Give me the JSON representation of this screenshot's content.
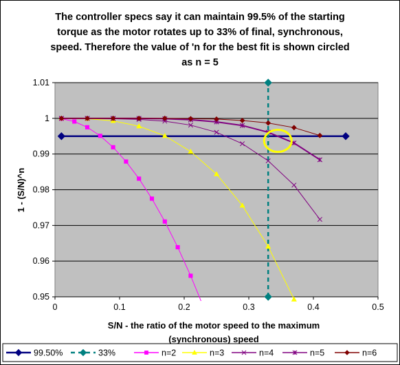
{
  "chart_data": {
    "type": "line",
    "title_lines": [
      "The controller specs say it can maintain 99.5% of the starting",
      "torque as the motor rotates up to 33% of final, synchronous,",
      "speed. Therefore the value of 'n for the best fit is shown circled",
      "as n = 5"
    ],
    "xlabel_lines": [
      "S/N - the ratio of the motor speed to the maximum",
      "(synchronous) speed"
    ],
    "ylabel": "1 - (S/N)^n",
    "xlim": [
      0,
      0.5
    ],
    "ylim": [
      0.95,
      1.01
    ],
    "x_ticks": [
      "0",
      "0.1",
      "0.2",
      "0.3",
      "0.4",
      "0.5"
    ],
    "y_ticks": [
      "0.95",
      "0.96",
      "0.97",
      "0.98",
      "0.99",
      "1",
      "1.01"
    ],
    "plot_background": "#c0c0c0",
    "grid": "horizontal",
    "legend_position": "bottom",
    "highlight_circle": {
      "x": 0.345,
      "y": 0.9937,
      "color": "#ffff00"
    },
    "series": [
      {
        "name": "99.50%",
        "color": "#000080",
        "marker": "diamond",
        "dash": false,
        "x": [
          0.01,
          0.45
        ],
        "y": [
          0.995,
          0.995
        ]
      },
      {
        "name": "33%",
        "color": "#008080",
        "marker": "diamond",
        "dash": true,
        "x": [
          0.33,
          0.33
        ],
        "y": [
          0.95,
          1.01
        ]
      },
      {
        "name": "n=2",
        "color": "#ff00ff",
        "marker": "square",
        "dash": false,
        "x": [
          0.01,
          0.03,
          0.05,
          0.07,
          0.09,
          0.11,
          0.13,
          0.15,
          0.17,
          0.19,
          0.21,
          0.23
        ],
        "y": [
          0.9999,
          0.9991,
          0.9975,
          0.9951,
          0.9919,
          0.9879,
          0.9831,
          0.9775,
          0.9711,
          0.9639,
          0.9559,
          0.9471
        ]
      },
      {
        "name": "n=3",
        "color": "#ffff00",
        "marker": "triangle",
        "dash": false,
        "x": [
          0.01,
          0.05,
          0.09,
          0.13,
          0.17,
          0.21,
          0.25,
          0.29,
          0.33,
          0.37
        ],
        "y": [
          1.0,
          0.9999,
          0.9993,
          0.9978,
          0.9951,
          0.9907,
          0.9844,
          0.9756,
          0.9641,
          0.9493
        ]
      },
      {
        "name": "n=4",
        "color": "#800080",
        "marker": "x",
        "dash": false,
        "x": [
          0.01,
          0.05,
          0.09,
          0.13,
          0.17,
          0.21,
          0.25,
          0.29,
          0.33,
          0.37,
          0.41
        ],
        "y": [
          1.0,
          1.0,
          0.9999,
          0.9997,
          0.9992,
          0.9981,
          0.9961,
          0.9929,
          0.9881,
          0.9813,
          0.9717
        ]
      },
      {
        "name": "n=5",
        "color": "#800080",
        "marker": "star",
        "dash": false,
        "x": [
          0.01,
          0.05,
          0.09,
          0.13,
          0.17,
          0.21,
          0.25,
          0.29,
          0.33,
          0.37,
          0.41
        ],
        "y": [
          1.0,
          1.0,
          1.0,
          1.0,
          0.9999,
          0.9996,
          0.999,
          0.998,
          0.9961,
          0.9931,
          0.9884
        ]
      },
      {
        "name": "n=6",
        "color": "#800000",
        "marker": "diamond",
        "dash": false,
        "x": [
          0.01,
          0.05,
          0.09,
          0.13,
          0.17,
          0.21,
          0.25,
          0.29,
          0.33,
          0.37,
          0.41
        ],
        "y": [
          1.0,
          1.0,
          1.0,
          1.0,
          1.0,
          0.9999,
          0.9998,
          0.9994,
          0.9987,
          0.9974,
          0.9952
        ]
      }
    ]
  }
}
